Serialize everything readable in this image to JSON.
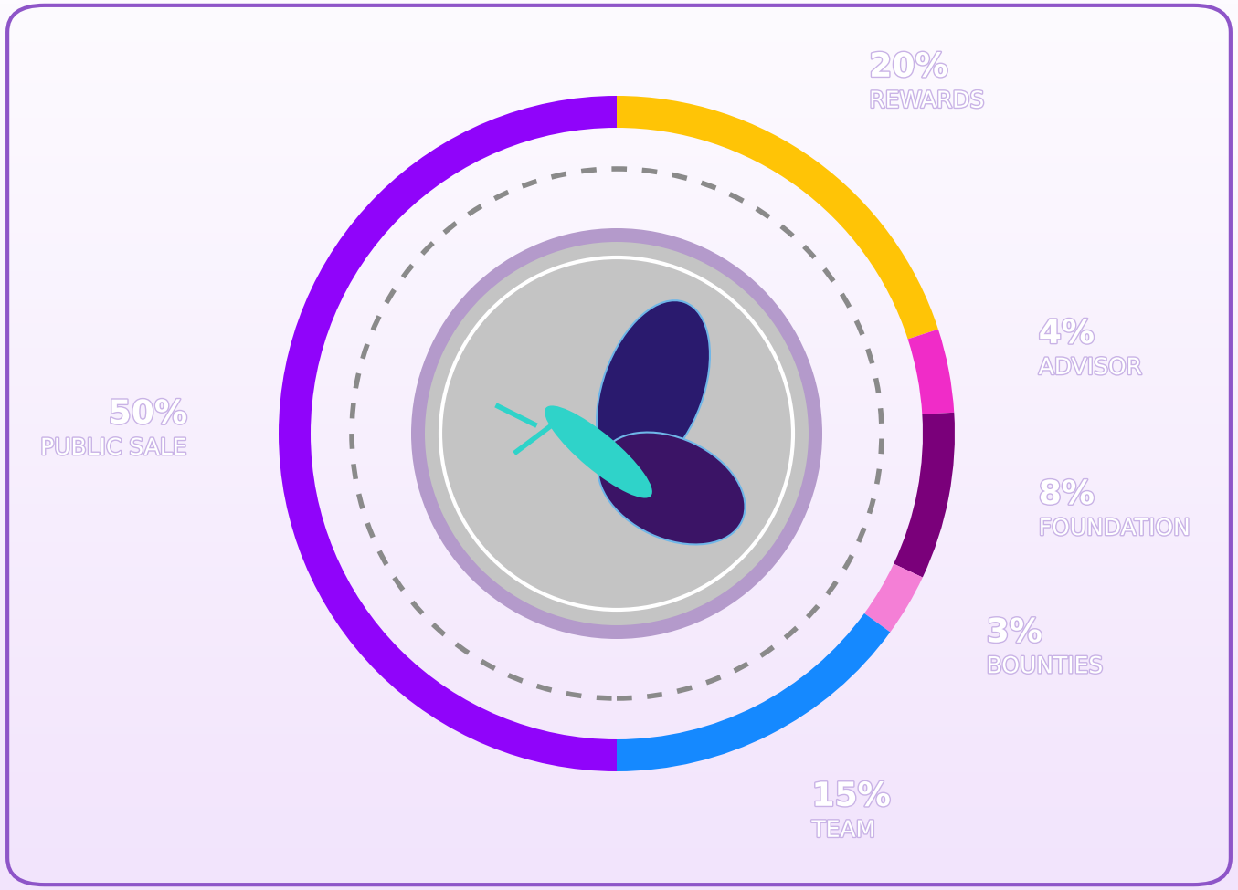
{
  "chart_data": {
    "type": "donut",
    "categories": [
      "REWARDS",
      "ADVISOR",
      "FOUNDATION",
      "BOUNTIES",
      "TEAM",
      "PUBLIC SALE"
    ],
    "values": [
      20,
      4,
      8,
      3,
      15,
      50
    ],
    "value_labels": [
      "20%",
      "4%",
      "8%",
      "3%",
      "15%",
      "50%"
    ],
    "colors": [
      "#FFC406",
      "#F02CC8",
      "#7A007A",
      "#F47FD6",
      "#1589FF",
      "#9004FA"
    ],
    "data_labels": true
  }
}
